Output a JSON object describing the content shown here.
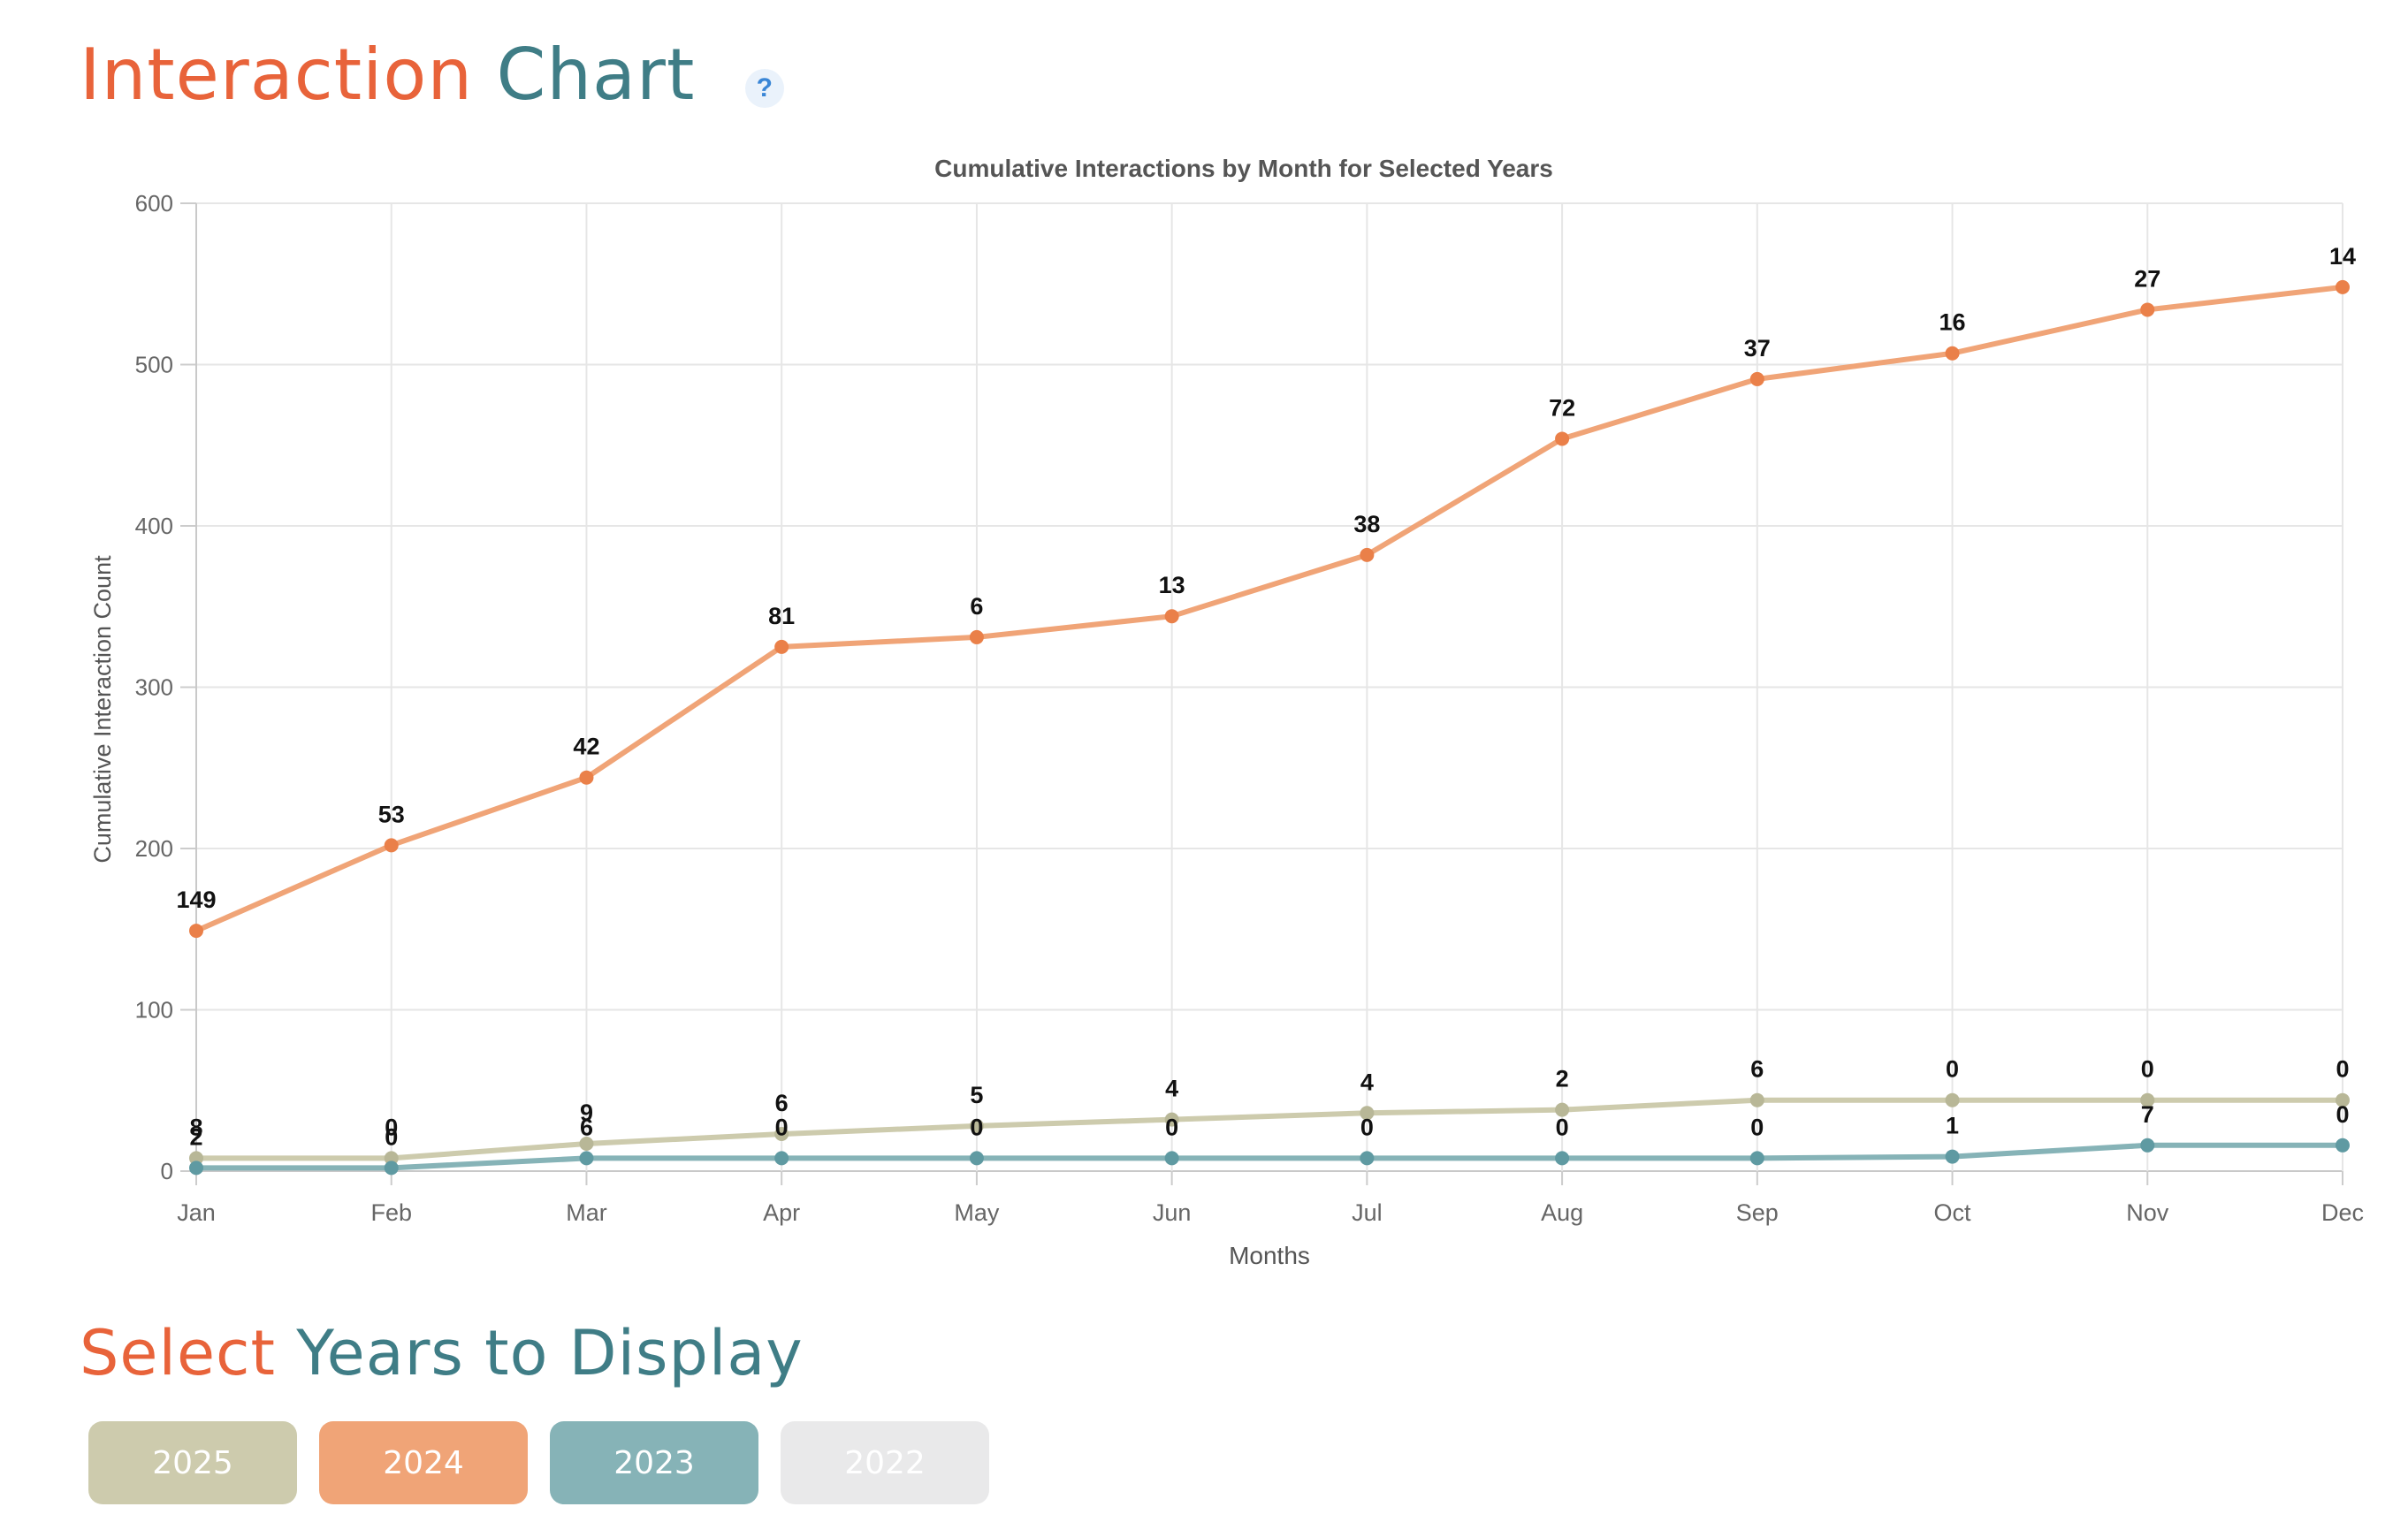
{
  "heading": {
    "word1": "Interaction",
    "word2": "Chart",
    "help": "?"
  },
  "select_heading": {
    "word1": "Select",
    "word2": "Years to Display"
  },
  "year_buttons": [
    {
      "label": "2025",
      "color": "#cdcbad",
      "active": true
    },
    {
      "label": "2024",
      "color": "#f0a477",
      "active": true
    },
    {
      "label": "2023",
      "color": "#86b3b7",
      "active": true
    },
    {
      "label": "2022",
      "color": "#e9e9ea",
      "active": false
    }
  ],
  "chart_data": {
    "type": "line",
    "title": "Cumulative Interactions by Month for Selected Years",
    "xlabel": "Months",
    "ylabel": "Cumulative Interaction Count",
    "categories": [
      "Jan",
      "Feb",
      "Mar",
      "Apr",
      "May",
      "Jun",
      "Jul",
      "Aug",
      "Sep",
      "Oct",
      "Nov",
      "Dec"
    ],
    "ylim": [
      0,
      600
    ],
    "yticks": [
      0,
      100,
      200,
      300,
      400,
      500,
      600
    ],
    "grid": true,
    "legend": "none",
    "series": [
      {
        "color": "#cdcbad",
        "point_color": "#b8b797",
        "values": [
          8,
          8,
          17,
          23,
          28,
          32,
          36,
          38,
          44,
          44,
          44,
          44
        ],
        "labels": [
          "8",
          "0",
          "9",
          "6",
          "5",
          "4",
          "4",
          "2",
          "6",
          "0",
          "0",
          "0"
        ]
      },
      {
        "color": "#f0a477",
        "point_color": "#ea8049",
        "values": [
          149,
          202,
          244,
          325,
          331,
          344,
          382,
          454,
          491,
          507,
          534,
          548
        ],
        "labels": [
          "149",
          "53",
          "42",
          "81",
          "6",
          "13",
          "38",
          "72",
          "37",
          "16",
          "27",
          "14"
        ]
      },
      {
        "color": "#86b3b7",
        "point_color": "#5f9aa2",
        "values": [
          2,
          2,
          8,
          8,
          8,
          8,
          8,
          8,
          8,
          9,
          16,
          16
        ],
        "labels": [
          "2",
          "0",
          "6",
          "0",
          "0",
          "0",
          "0",
          "0",
          "0",
          "1",
          "7",
          "0"
        ]
      }
    ]
  }
}
